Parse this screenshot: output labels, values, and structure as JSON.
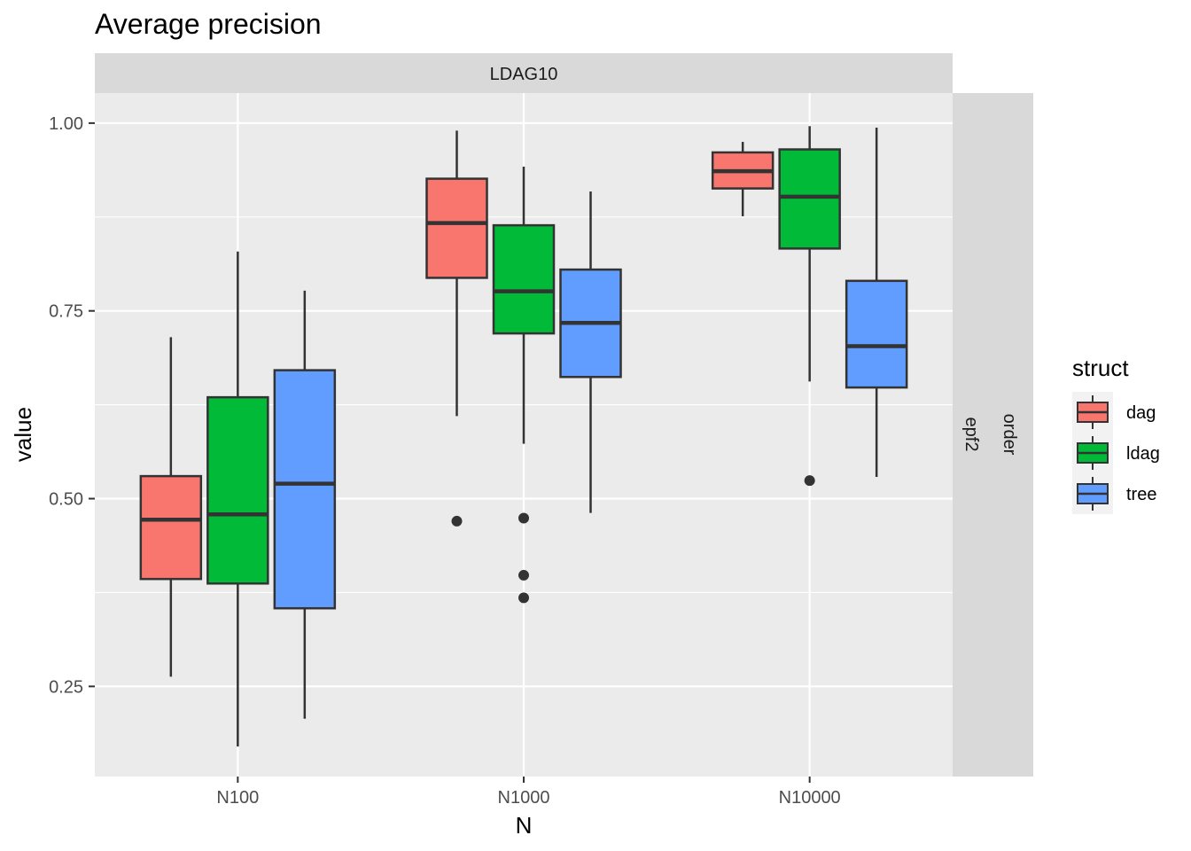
{
  "chart_data": {
    "type": "boxplot",
    "title": "Average precision",
    "xlabel": "N",
    "ylabel": "value",
    "facet_top": "LDAG10",
    "facet_right": [
      "order",
      "epf2"
    ],
    "categories": [
      "N100",
      "N1000",
      "N10000"
    ],
    "ylim": [
      0.13,
      1.04
    ],
    "yticks": [
      0.25,
      0.5,
      0.75,
      1.0
    ],
    "ytick_labels": [
      "0.25",
      "0.50",
      "0.75",
      "1.00"
    ],
    "legend": {
      "title": "struct",
      "position": "right",
      "entries": [
        {
          "name": "dag",
          "color": "#F8766D"
        },
        {
          "name": "ldag",
          "color": "#00BA38"
        },
        {
          "name": "tree",
          "color": "#619CFF"
        }
      ]
    },
    "series": [
      {
        "name": "dag",
        "color": "#F8766D",
        "boxes": [
          {
            "category": "N100",
            "whisker_low": 0.263,
            "q1": 0.393,
            "median": 0.472,
            "q3": 0.53,
            "whisker_high": 0.715,
            "outliers": []
          },
          {
            "category": "N1000",
            "whisker_low": 0.61,
            "q1": 0.794,
            "median": 0.867,
            "q3": 0.926,
            "whisker_high": 0.99,
            "outliers": [
              0.47
            ]
          },
          {
            "category": "N10000",
            "whisker_low": 0.876,
            "q1": 0.913,
            "median": 0.936,
            "q3": 0.961,
            "whisker_high": 0.975,
            "outliers": []
          }
        ]
      },
      {
        "name": "ldag",
        "color": "#00BA38",
        "boxes": [
          {
            "category": "N100",
            "whisker_low": 0.17,
            "q1": 0.387,
            "median": 0.479,
            "q3": 0.635,
            "whisker_high": 0.829,
            "outliers": []
          },
          {
            "category": "N1000",
            "whisker_low": 0.573,
            "q1": 0.72,
            "median": 0.776,
            "q3": 0.864,
            "whisker_high": 0.942,
            "outliers": [
              0.474,
              0.398,
              0.368
            ]
          },
          {
            "category": "N10000",
            "whisker_low": 0.656,
            "q1": 0.833,
            "median": 0.902,
            "q3": 0.965,
            "whisker_high": 0.996,
            "outliers": [
              0.524
            ]
          }
        ]
      },
      {
        "name": "tree",
        "color": "#619CFF",
        "boxes": [
          {
            "category": "N100",
            "whisker_low": 0.207,
            "q1": 0.354,
            "median": 0.52,
            "q3": 0.671,
            "whisker_high": 0.777,
            "outliers": []
          },
          {
            "category": "N1000",
            "whisker_low": 0.481,
            "q1": 0.662,
            "median": 0.734,
            "q3": 0.805,
            "whisker_high": 0.909,
            "outliers": []
          },
          {
            "category": "N10000",
            "whisker_low": 0.529,
            "q1": 0.648,
            "median": 0.703,
            "q3": 0.79,
            "whisker_high": 0.994,
            "outliers": []
          }
        ]
      }
    ]
  }
}
